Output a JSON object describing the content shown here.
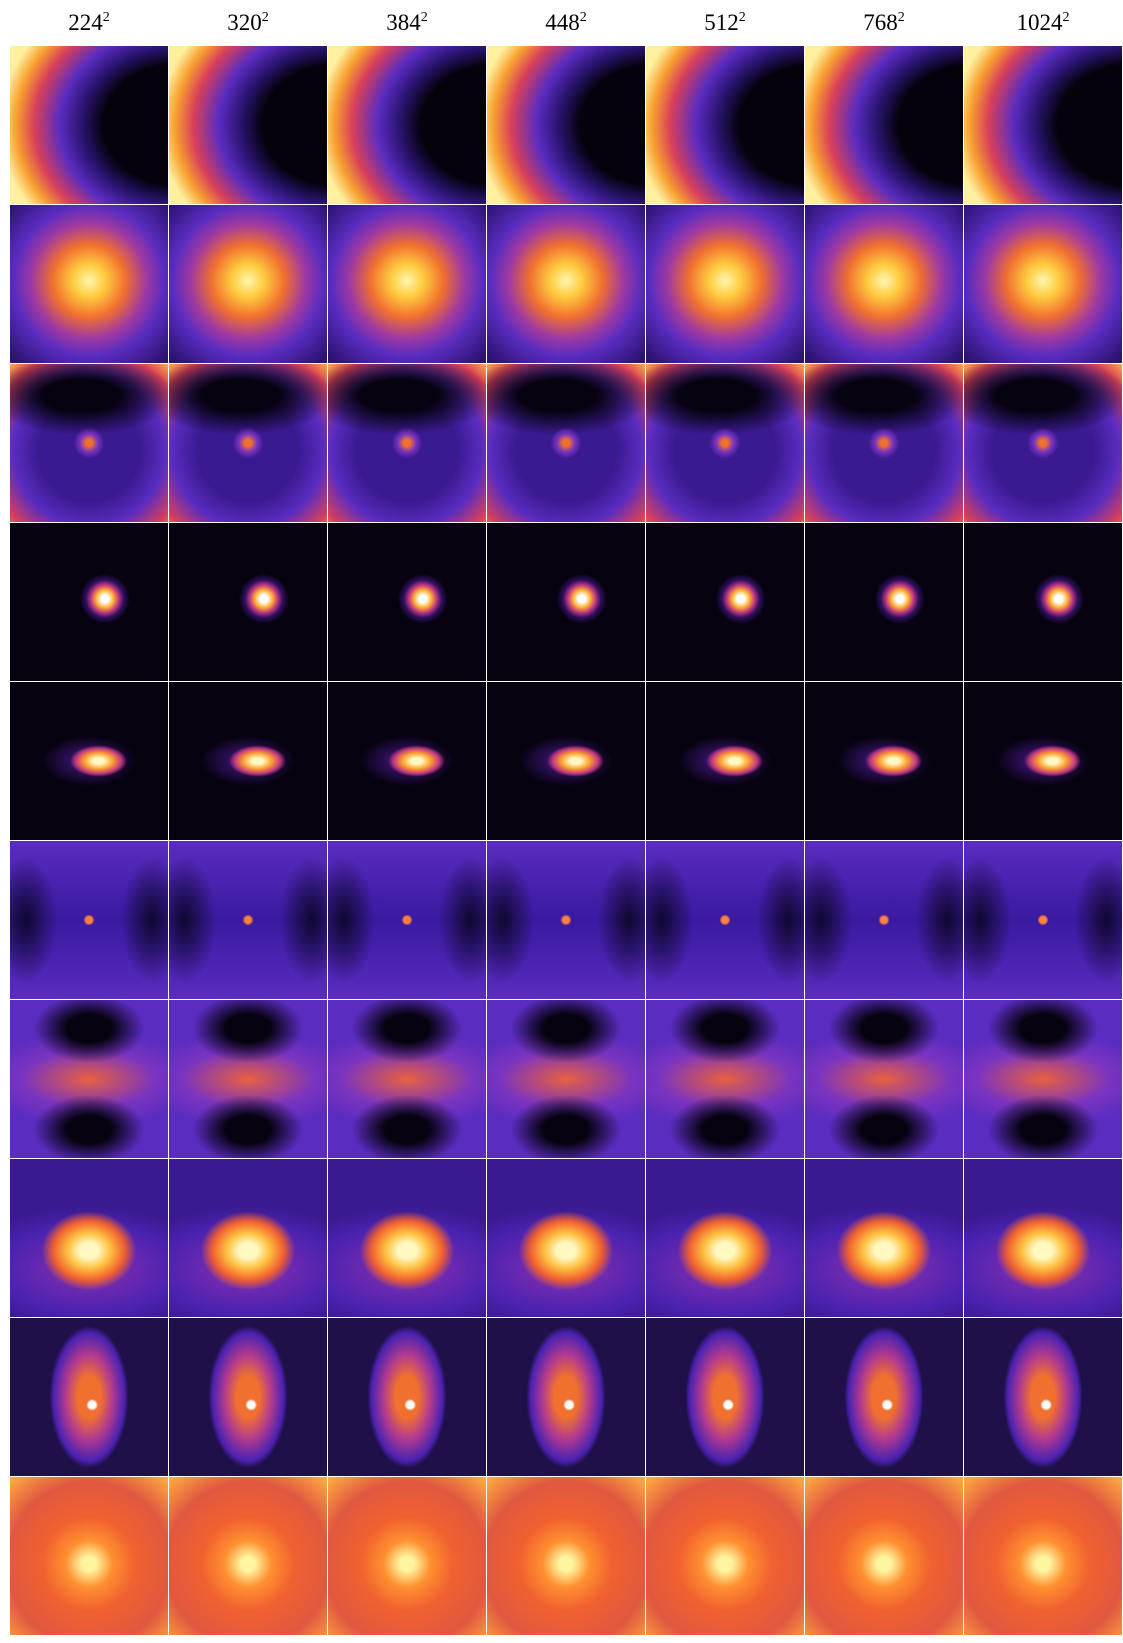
{
  "columns": [
    {
      "base": "224",
      "exponent": "2"
    },
    {
      "base": "320",
      "exponent": "2"
    },
    {
      "base": "384",
      "exponent": "2"
    },
    {
      "base": "448",
      "exponent": "2"
    },
    {
      "base": "512",
      "exponent": "2"
    },
    {
      "base": "768",
      "exponent": "2"
    },
    {
      "base": "1024",
      "exponent": "2"
    }
  ]
}
